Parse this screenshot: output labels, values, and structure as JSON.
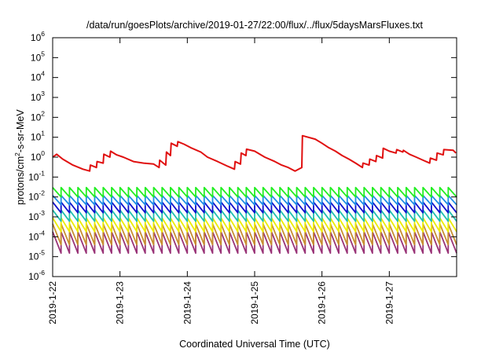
{
  "chart_data": {
    "type": "line",
    "title": "/data/run/goesPlots/archive/2019-01-27/22:00/flux/../flux/5daysMarsFluxes.txt",
    "xlabel": "Coordinated Universal Time (UTC)",
    "ylabel_parts": [
      "protons/cm",
      "2",
      "-s-sr-MeV"
    ],
    "y_scale": "log",
    "ylim": [
      1e-06,
      1000000.0
    ],
    "y_ticks": [
      {
        "base": "10",
        "exp": "6",
        "value": 1000000.0
      },
      {
        "base": "10",
        "exp": "5",
        "value": 100000.0
      },
      {
        "base": "10",
        "exp": "4",
        "value": 10000.0
      },
      {
        "base": "10",
        "exp": "3",
        "value": 1000.0
      },
      {
        "base": "10",
        "exp": "2",
        "value": 100.0
      },
      {
        "base": "10",
        "exp": "1",
        "value": 10.0
      },
      {
        "base": "10",
        "exp": "0",
        "value": 1.0
      },
      {
        "base": "10",
        "exp": "-1",
        "value": 0.1
      },
      {
        "base": "10",
        "exp": "-2",
        "value": 0.01
      },
      {
        "base": "10",
        "exp": "-3",
        "value": 0.001
      },
      {
        "base": "10",
        "exp": "-4",
        "value": 0.0001
      },
      {
        "base": "10",
        "exp": "-5",
        "value": 1e-05
      },
      {
        "base": "10",
        "exp": "-6",
        "value": 1e-06
      }
    ],
    "xlim": [
      0,
      6
    ],
    "x_ticks": [
      {
        "label": "2019-1-22",
        "day": 0
      },
      {
        "label": "2019-1-23",
        "day": 1
      },
      {
        "label": "2019-1-24",
        "day": 2
      },
      {
        "label": "2019-1-25",
        "day": 3
      },
      {
        "label": "2019-1-26",
        "day": 4
      },
      {
        "label": "2019-1-27",
        "day": 5
      }
    ],
    "grid": false,
    "legend": "none",
    "series": [
      {
        "color": "#e01010",
        "x": [
          0.0,
          0.06,
          0.15,
          0.3,
          0.45,
          0.55,
          0.56,
          0.65,
          0.66,
          0.75,
          0.76,
          0.85,
          0.86,
          0.95,
          1.05,
          1.2,
          1.35,
          1.5,
          1.58,
          1.59,
          1.68,
          1.69,
          1.75,
          1.76,
          1.85,
          1.86,
          1.95,
          2.05,
          2.2,
          2.3,
          2.45,
          2.6,
          2.7,
          2.71,
          2.79,
          2.8,
          2.87,
          2.88,
          3.0,
          3.15,
          3.3,
          3.4,
          3.5,
          3.6,
          3.7,
          3.71,
          3.9,
          4.0,
          4.1,
          4.2,
          4.3,
          4.4,
          4.5,
          4.6,
          4.61,
          4.7,
          4.71,
          4.8,
          4.81,
          4.9,
          4.91,
          5.0,
          5.1,
          5.11,
          5.2,
          5.21,
          5.3,
          5.4,
          5.5,
          5.6,
          5.61,
          5.7,
          5.71,
          5.8,
          5.81,
          5.95,
          5.99
        ],
        "y": [
          1.0,
          1.4,
          0.8,
          0.4,
          0.25,
          0.2,
          0.4,
          0.3,
          0.6,
          0.5,
          1.4,
          1.0,
          2.0,
          1.3,
          1.0,
          0.6,
          0.5,
          0.45,
          0.3,
          0.7,
          0.4,
          1.8,
          1.2,
          5.0,
          3.5,
          6.0,
          4.5,
          3.0,
          1.8,
          1.0,
          0.6,
          0.35,
          0.25,
          0.6,
          0.45,
          1.6,
          1.2,
          2.5,
          2.0,
          1.0,
          0.6,
          0.4,
          0.3,
          0.2,
          0.3,
          12.0,
          8.0,
          5.0,
          3.0,
          2.0,
          1.2,
          0.8,
          0.5,
          0.3,
          0.5,
          0.4,
          0.8,
          0.6,
          1.2,
          0.9,
          2.8,
          2.0,
          1.6,
          2.4,
          1.8,
          2.2,
          1.4,
          1.0,
          0.7,
          0.5,
          0.9,
          0.7,
          1.6,
          1.3,
          2.4,
          2.2,
          1.6
        ]
      },
      {
        "color": "#22ee22",
        "teeth": 48,
        "hi": 0.03,
        "lo": 0.01
      },
      {
        "color": "#1e8ce6",
        "teeth": 48,
        "hi": 0.012,
        "lo": 0.004
      },
      {
        "color": "#1010cc",
        "teeth": 48,
        "hi": 0.0055,
        "lo": 0.0016
      },
      {
        "color": "#20c0b0",
        "teeth": 48,
        "hi": 0.0022,
        "lo": 0.0006
      },
      {
        "color": "#eded00",
        "teeth": 48,
        "hi": 0.0009,
        "lo": 0.00018
      },
      {
        "color": "#c89030",
        "teeth": 48,
        "hi": 0.00045,
        "lo": 4e-05
      },
      {
        "color": "#993377",
        "teeth": 48,
        "hi": 0.00018,
        "lo": 1.5e-05
      }
    ]
  }
}
